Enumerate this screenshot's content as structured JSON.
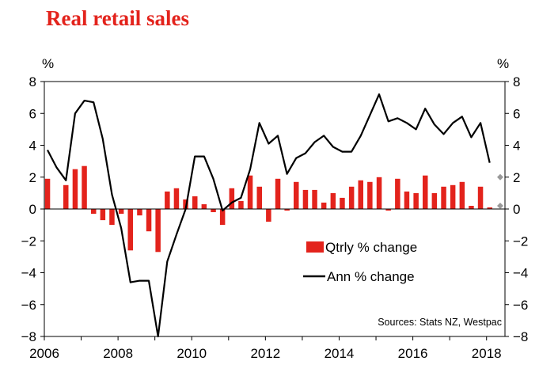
{
  "title": "Real retail sales",
  "chart_data": {
    "type": "bar+line",
    "title": "Real retail sales",
    "left_unit": "%",
    "right_unit": "%",
    "ylim": [
      -8,
      8
    ],
    "yticks": [
      8,
      6,
      4,
      2,
      0,
      -2,
      -4,
      -6,
      -8
    ],
    "xlim": [
      2006,
      2018.5
    ],
    "xticks": [
      2006,
      2008,
      2010,
      2012,
      2014,
      2016,
      2018
    ],
    "legend_position": "lower-right",
    "source": "Sources: Stats NZ, Westpac",
    "colors": {
      "bars": "#e3231c",
      "line": "#000000",
      "forecast_marker": "#999999"
    },
    "series": [
      {
        "name": "Qtrly % change",
        "kind": "bar",
        "x": [
          2006.0,
          2006.25,
          2006.5,
          2006.75,
          2007.0,
          2007.25,
          2007.5,
          2007.75,
          2008.0,
          2008.25,
          2008.5,
          2008.75,
          2009.0,
          2009.25,
          2009.5,
          2009.75,
          2010.0,
          2010.25,
          2010.5,
          2010.75,
          2011.0,
          2011.25,
          2011.5,
          2011.75,
          2012.0,
          2012.25,
          2012.5,
          2012.75,
          2013.0,
          2013.25,
          2013.5,
          2013.75,
          2014.0,
          2014.25,
          2014.5,
          2014.75,
          2015.0,
          2015.25,
          2015.5,
          2015.75,
          2016.0,
          2016.25,
          2016.5,
          2016.75,
          2017.0,
          2017.25,
          2017.5,
          2017.75,
          2018.0,
          2018.25
        ],
        "values": [
          1.9,
          0.0,
          1.5,
          2.5,
          2.7,
          -0.3,
          -0.7,
          -1.0,
          -0.3,
          -2.6,
          -0.4,
          -1.4,
          -2.7,
          1.1,
          1.3,
          0.6,
          0.8,
          0.3,
          -0.2,
          -1.0,
          1.3,
          0.5,
          2.1,
          1.4,
          -0.8,
          1.9,
          -0.1,
          1.7,
          1.2,
          1.2,
          0.4,
          1.0,
          0.7,
          1.4,
          1.8,
          1.7,
          2.0,
          -0.1,
          1.9,
          1.1,
          1.0,
          2.1,
          1.0,
          1.4,
          1.5,
          1.7,
          0.2,
          1.4,
          0.1,
          0.0
        ]
      },
      {
        "name": "Ann % change",
        "kind": "line",
        "x": [
          2006.0,
          2006.25,
          2006.5,
          2006.75,
          2007.0,
          2007.25,
          2007.5,
          2007.75,
          2008.0,
          2008.25,
          2008.5,
          2008.75,
          2009.0,
          2009.25,
          2009.5,
          2009.75,
          2010.0,
          2010.25,
          2010.5,
          2010.75,
          2011.0,
          2011.25,
          2011.5,
          2011.75,
          2012.0,
          2012.25,
          2012.5,
          2012.75,
          2013.0,
          2013.25,
          2013.5,
          2013.75,
          2014.0,
          2014.25,
          2014.5,
          2014.75,
          2015.0,
          2015.25,
          2015.5,
          2015.75,
          2016.0,
          2016.25,
          2016.5,
          2016.75,
          2017.0,
          2017.25,
          2017.5,
          2017.75,
          2018.0
        ],
        "values": [
          3.7,
          2.6,
          1.8,
          6.0,
          6.8,
          6.7,
          4.4,
          0.9,
          -1.2,
          -4.6,
          -4.5,
          -4.5,
          -8.0,
          -3.3,
          -1.6,
          0.0,
          3.3,
          3.3,
          1.9,
          -0.1,
          0.4,
          0.7,
          2.5,
          5.4,
          4.1,
          4.6,
          2.2,
          3.2,
          3.5,
          4.2,
          4.6,
          3.9,
          3.6,
          3.6,
          4.6,
          5.9,
          7.2,
          5.5,
          5.7,
          5.4,
          5.0,
          6.3,
          5.3,
          4.7,
          5.4,
          5.8,
          4.5,
          5.4,
          2.9
        ]
      },
      {
        "name": "",
        "kind": "forecast-markers",
        "x": [
          2018.5,
          2018.5
        ],
        "values": [
          2.0,
          0.2
        ]
      }
    ]
  }
}
